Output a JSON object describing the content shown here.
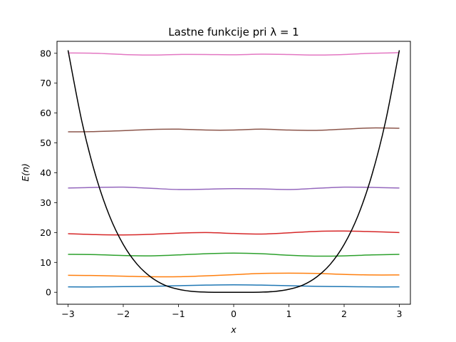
{
  "chart_data": {
    "type": "line",
    "title": "Lastne funkcije pri λ = 1",
    "xlabel": "x",
    "ylabel": "E(n)",
    "xlim": [
      -3.2,
      3.2
    ],
    "ylim": [
      -4,
      84
    ],
    "xticks": [
      -3,
      -2,
      -1,
      0,
      1,
      2,
      3
    ],
    "xtick_labels": [
      "−3",
      "−2",
      "−1",
      "0",
      "1",
      "2",
      "3"
    ],
    "yticks": [
      0,
      10,
      20,
      30,
      40,
      50,
      60,
      70,
      80
    ],
    "ytick_labels": [
      "0",
      "10",
      "20",
      "30",
      "40",
      "50",
      "60",
      "70",
      "80"
    ],
    "grid": false,
    "x": [
      -3,
      -2.5,
      -2,
      -1.5,
      -1,
      -0.5,
      0,
      0.5,
      1,
      1.5,
      2,
      2.5,
      3
    ],
    "series": [
      {
        "color": "#1f77b4",
        "values": [
          1.8,
          1.8,
          1.9,
          2.0,
          2.2,
          2.4,
          2.5,
          2.4,
          2.2,
          2.0,
          1.9,
          1.8,
          1.8
        ]
      },
      {
        "color": "#ff7f0e",
        "values": [
          5.7,
          5.6,
          5.4,
          5.2,
          5.2,
          5.5,
          5.9,
          6.3,
          6.4,
          6.3,
          6.0,
          5.8,
          5.8
        ]
      },
      {
        "color": "#2ca02c",
        "values": [
          12.7,
          12.6,
          12.3,
          12.2,
          12.5,
          12.9,
          13.1,
          12.9,
          12.4,
          12.1,
          12.2,
          12.5,
          12.7
        ]
      },
      {
        "color": "#d62728",
        "values": [
          19.6,
          19.3,
          19.2,
          19.4,
          19.8,
          20.0,
          19.7,
          19.5,
          19.9,
          20.4,
          20.5,
          20.3,
          20.0
        ]
      },
      {
        "color": "#9467bd",
        "values": [
          34.9,
          35.1,
          35.2,
          34.8,
          34.4,
          34.5,
          34.7,
          34.6,
          34.4,
          34.8,
          35.2,
          35.1,
          34.9
        ]
      },
      {
        "color": "#8c564b",
        "values": [
          53.7,
          53.8,
          54.1,
          54.5,
          54.6,
          54.3,
          54.3,
          54.6,
          54.3,
          54.2,
          54.6,
          55.0,
          54.9
        ]
      },
      {
        "color": "#e377c2",
        "values": [
          80.1,
          80.0,
          79.6,
          79.4,
          79.6,
          79.6,
          79.5,
          79.7,
          79.6,
          79.4,
          79.6,
          80.0,
          80.2
        ]
      }
    ],
    "potential": {
      "color": "#000000",
      "x": [
        -3,
        -2.75,
        -2.5,
        -2.25,
        -2,
        -1.75,
        -1.5,
        -1.25,
        -1,
        -0.75,
        -0.5,
        -0.25,
        0,
        0.25,
        0.5,
        0.75,
        1,
        1.25,
        1.5,
        1.75,
        2,
        2.25,
        2.5,
        2.75,
        3
      ],
      "values": [
        81.0,
        57.2,
        39.1,
        25.6,
        16.0,
        9.4,
        5.1,
        2.4,
        1.0,
        0.3,
        0.06,
        0.0,
        0.0,
        0.0,
        0.06,
        0.3,
        1.0,
        2.4,
        5.1,
        9.4,
        16.0,
        25.6,
        39.1,
        57.2,
        81.0
      ]
    }
  }
}
